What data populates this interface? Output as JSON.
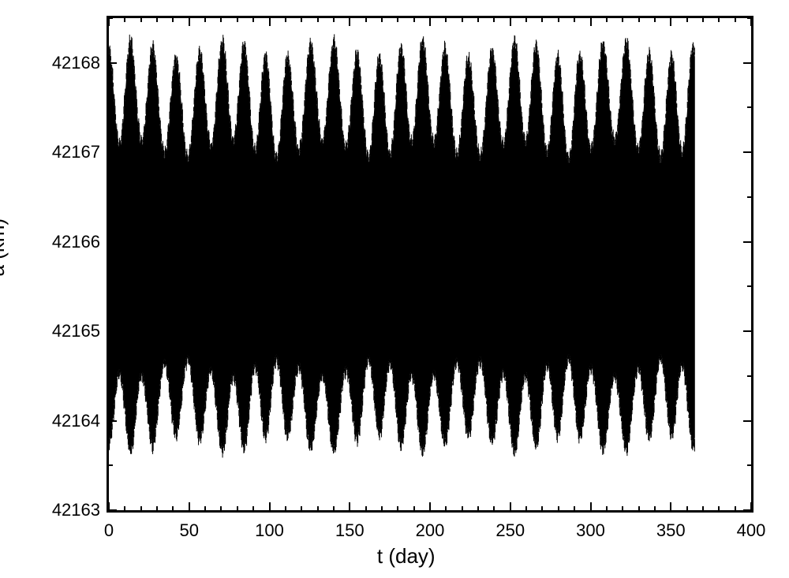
{
  "chart": {
    "type": "line",
    "background_color": "#ffffff",
    "line_color": "#000000",
    "border_color": "#000000",
    "border_width": 3,
    "xlabel": "t (day)",
    "ylabel": "a (km)",
    "label_fontsize": 26,
    "tick_fontsize": 22,
    "xlim": [
      0,
      400
    ],
    "ylim": [
      42163,
      42168.5
    ],
    "xticks": [
      0,
      50,
      100,
      150,
      200,
      250,
      300,
      350,
      400
    ],
    "xtick_minor_step": 10,
    "yticks": [
      42163,
      42164,
      42165,
      42166,
      42167,
      42168
    ],
    "ytick_minor_step": 0.5,
    "data_center": 42165.7,
    "data_x_end": 365,
    "envelope_beat_period": 14,
    "envelope_high_max": 42168.1,
    "envelope_high_min": 42166.5,
    "envelope_low_max": 42165.0,
    "envelope_low_min": 42163.8,
    "carrier_period": 0.5
  }
}
